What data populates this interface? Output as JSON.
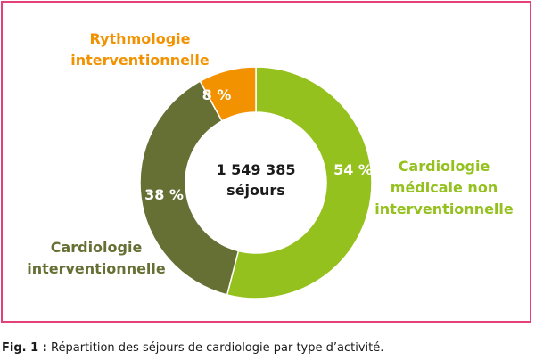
{
  "chart_data": {
    "type": "pie",
    "variant": "donut",
    "center_label": [
      "1 549 385",
      "séjours"
    ],
    "slices": [
      {
        "label": "Cardiologie médicale non interventionnelle",
        "label_lines": [
          "Cardiologie",
          "médicale non",
          "interventionnelle"
        ],
        "value": 54,
        "value_label": "54 %",
        "color": "#95c11f"
      },
      {
        "label": "Cardiologie interventionnelle",
        "label_lines": [
          "Cardiologie",
          "interventionnelle"
        ],
        "value": 38,
        "value_label": "38 %",
        "color": "#667035"
      },
      {
        "label": "Rythmologie interventionnelle",
        "label_lines": [
          "Rythmologie",
          "interventionnelle"
        ],
        "value": 8,
        "value_label": "8 %",
        "color": "#f39200"
      }
    ]
  },
  "caption": {
    "fig": "Fig. 1 :",
    "text": "Répartition des séjours de cardiologie par type d’activité."
  },
  "colors": {
    "frame": "#e4417a"
  }
}
